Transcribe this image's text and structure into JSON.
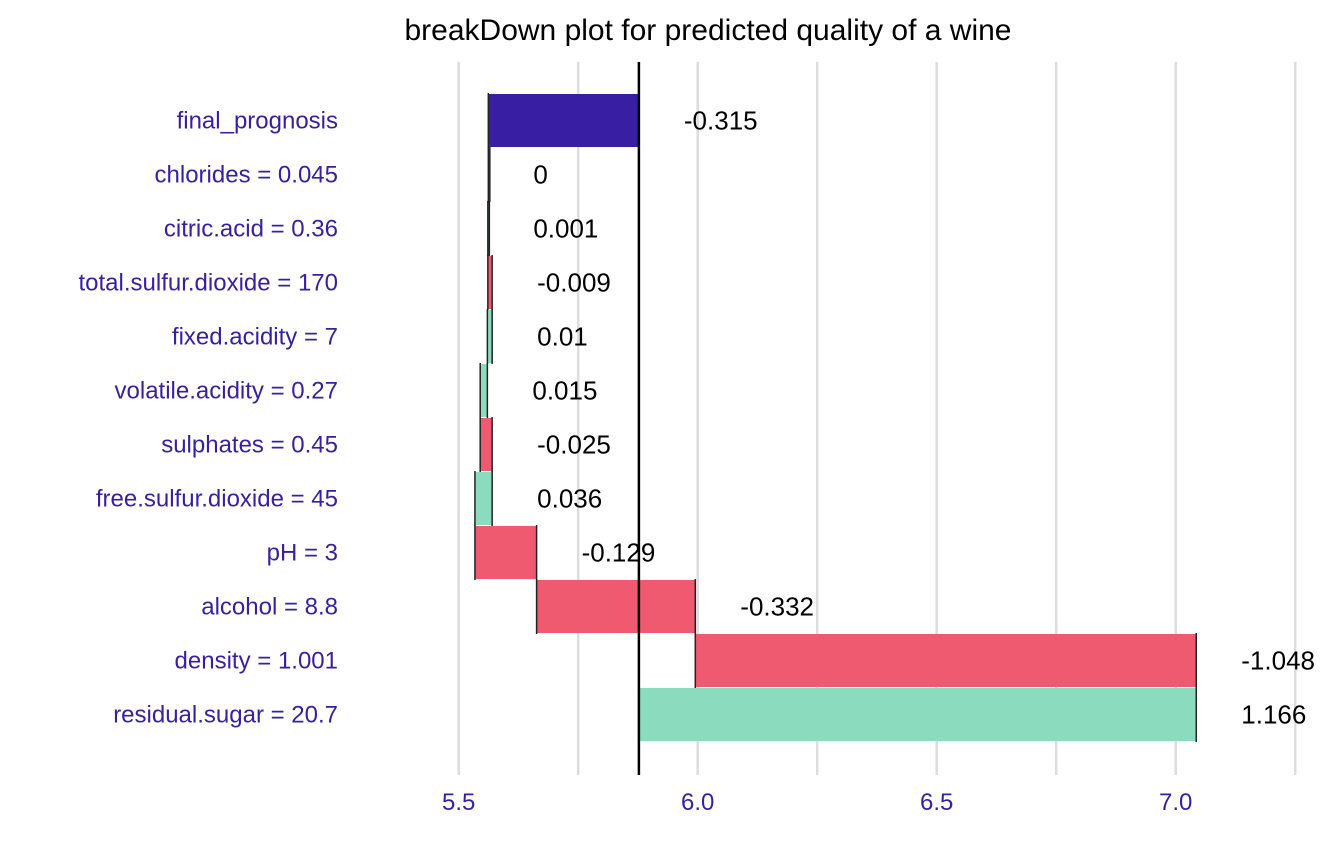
{
  "chart_data": {
    "type": "bar",
    "subtype": "waterfall",
    "title": "breakDown plot for predicted quality of a wine",
    "xlabel": "",
    "ylabel": "",
    "xlim": [
      5.44,
      7.26
    ],
    "x_ticks": [
      5.5,
      6.0,
      6.5,
      7.0
    ],
    "x_tick_labels": [
      "5.5",
      "6.0",
      "6.5",
      "7.0"
    ],
    "minor_gridlines": [
      5.75,
      6.25,
      6.75,
      7.25
    ],
    "grid": true,
    "reference_line": 5.877,
    "colors": {
      "positive": "#8bdcbe",
      "negative": "#f05a71",
      "prediction": "#371ea3",
      "label": "#371ea3",
      "grid": "#dddddd"
    },
    "rows": [
      {
        "label": "final_prognosis",
        "value_label": "-0.315",
        "start": 5.877,
        "end": 5.562,
        "kind": "prediction"
      },
      {
        "label": "chlorides = 0.045",
        "value_label": "0",
        "start": 5.562,
        "end": 5.562,
        "kind": "positive"
      },
      {
        "label": "citric.acid = 0.36",
        "value_label": "0.001",
        "start": 5.561,
        "end": 5.562,
        "kind": "positive"
      },
      {
        "label": "total.sulfur.dioxide = 170",
        "value_label": "-0.009",
        "start": 5.57,
        "end": 5.561,
        "kind": "negative"
      },
      {
        "label": "fixed.acidity = 7",
        "value_label": "0.01",
        "start": 5.56,
        "end": 5.57,
        "kind": "positive"
      },
      {
        "label": "volatile.acidity = 0.27",
        "value_label": "0.015",
        "start": 5.545,
        "end": 5.56,
        "kind": "positive"
      },
      {
        "label": "sulphates = 0.45",
        "value_label": "-0.025",
        "start": 5.57,
        "end": 5.545,
        "kind": "negative"
      },
      {
        "label": "free.sulfur.dioxide = 45",
        "value_label": "0.036",
        "start": 5.534,
        "end": 5.57,
        "kind": "positive"
      },
      {
        "label": "pH = 3",
        "value_label": "-0.129",
        "start": 5.663,
        "end": 5.534,
        "kind": "negative"
      },
      {
        "label": "alcohol = 8.8",
        "value_label": "-0.332",
        "start": 5.995,
        "end": 5.663,
        "kind": "negative"
      },
      {
        "label": "density = 1.001",
        "value_label": "-1.048",
        "start": 7.043,
        "end": 5.995,
        "kind": "negative"
      },
      {
        "label": "residual.sugar = 20.7",
        "value_label": "1.166",
        "start": 5.877,
        "end": 7.043,
        "kind": "positive"
      }
    ]
  }
}
